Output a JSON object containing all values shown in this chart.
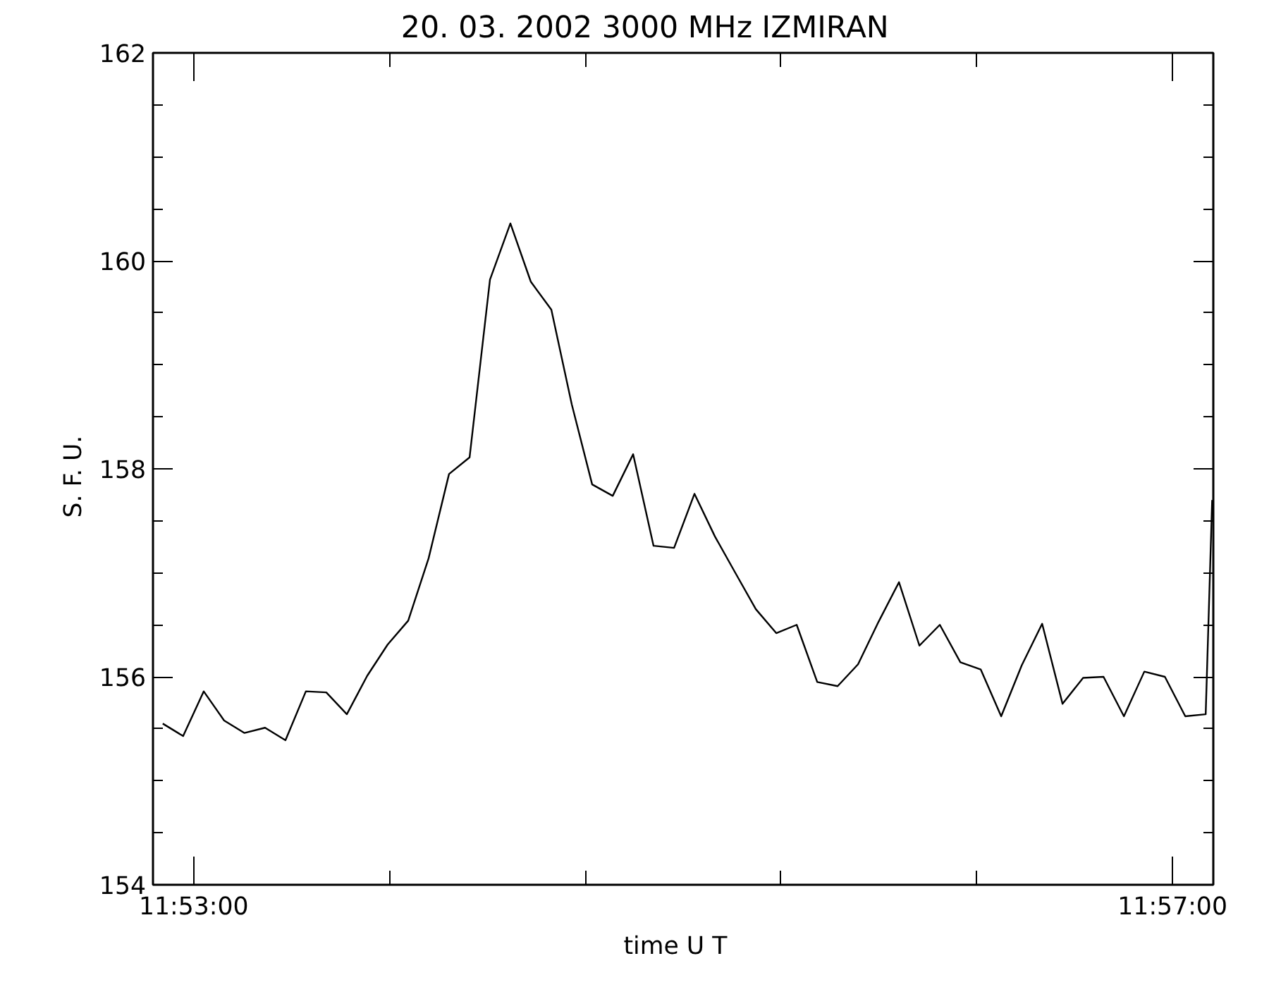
{
  "chart_data": {
    "type": "line",
    "title": "20.  03.  2002    3000 MHz    IZMIRAN",
    "xlabel": "time   U T",
    "ylabel": "S.  F.  U.",
    "x": [
      11.88122,
      11.88261,
      11.88401,
      11.8854,
      11.88679,
      11.88819,
      11.88958,
      11.89097,
      11.89236,
      11.89376,
      11.89515,
      11.89654,
      11.89794,
      11.89933,
      11.90072,
      11.90212,
      11.90351,
      11.9049,
      11.90629,
      11.90769,
      11.90908,
      11.91047,
      11.91187,
      11.91326,
      11.91465,
      11.91605,
      11.91744,
      11.91883,
      11.92022,
      11.92162,
      11.92301,
      11.9244,
      11.9258,
      11.92719,
      11.92858,
      11.92998,
      11.93137,
      11.93276,
      11.93415,
      11.93555,
      11.93694,
      11.93833,
      11.93973,
      11.94112,
      11.94251,
      11.94391,
      11.9453,
      11.94669,
      11.94808,
      11.94948,
      11.95087,
      11.95226,
      11.9527
    ],
    "series": [
      {
        "color": "#000000",
        "values": [
          155.55,
          155.43,
          155.86,
          155.58,
          155.46,
          155.51,
          155.39,
          155.86,
          155.85,
          155.64,
          156.01,
          156.31,
          156.54,
          157.14,
          157.95,
          158.11,
          159.82,
          160.36,
          159.8,
          159.53,
          158.62,
          157.85,
          157.74,
          158.14,
          157.26,
          157.24,
          157.76,
          157.35,
          157.0,
          156.65,
          156.42,
          156.5,
          155.95,
          155.91,
          156.12,
          156.53,
          156.91,
          156.3,
          156.5,
          156.14,
          156.07,
          155.62,
          156.11,
          156.51,
          155.74,
          155.99,
          156.0,
          155.62,
          156.05,
          156.0,
          155.62,
          155.64,
          157.7
        ]
      }
    ],
    "xlim": [
      11.880556,
      11.952778
    ],
    "xticks": [
      {
        "value": 11.883333,
        "label": "11:53:00"
      },
      {
        "value": 11.896667,
        "label": null
      },
      {
        "value": 11.91,
        "label": null
      },
      {
        "value": 11.923333,
        "label": null
      },
      {
        "value": 11.936667,
        "label": null
      },
      {
        "value": 11.95,
        "label": "11:57:00"
      }
    ],
    "ylim": [
      154,
      162
    ],
    "yticks": [
      154,
      {
        "value": 154.5,
        "label": null
      },
      {
        "value": 155,
        "label": null
      },
      {
        "value": 155.5,
        "label": null
      },
      156,
      {
        "value": 156.5,
        "label": null
      },
      {
        "value": 157,
        "label": null
      },
      {
        "value": 157.5,
        "label": null
      },
      158,
      {
        "value": 158.5,
        "label": null
      },
      {
        "value": 159,
        "label": null
      },
      {
        "value": 159.5,
        "label": null
      },
      160,
      {
        "value": 160.5,
        "label": null
      },
      {
        "value": 161,
        "label": null
      },
      {
        "value": 161.5,
        "label": null
      },
      162
    ],
    "grid": false,
    "marker": "none",
    "line_style": "solid"
  }
}
